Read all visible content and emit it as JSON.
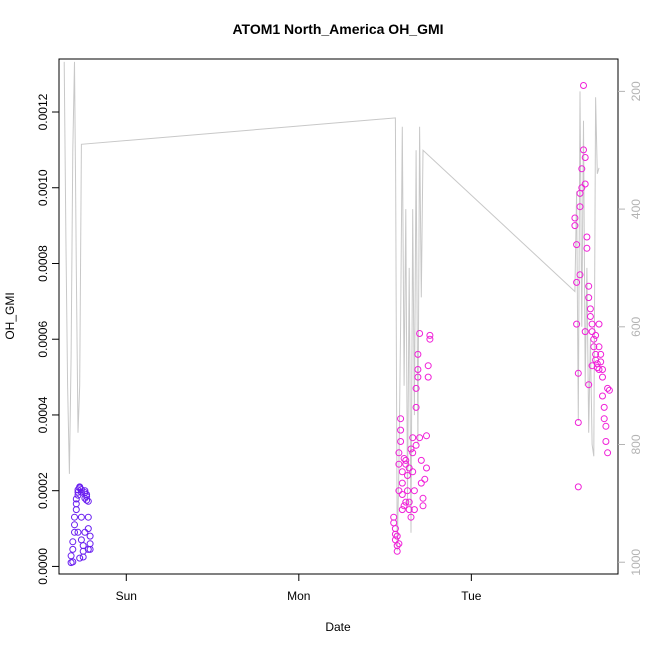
{
  "chart_data": {
    "type": "scatter",
    "title": "ATOM1 North_America OH_GMI",
    "xlabel": "Date",
    "ylabel": "OH_GMI",
    "x_ticks": [
      "Sun",
      "Mon",
      "Tue"
    ],
    "y_ticks": [
      "0.0000",
      "0.0002",
      "0.0004",
      "0.0006",
      "0.0008",
      "0.0010",
      "0.0012"
    ],
    "y_tick_values": [
      0,
      0.0002,
      0.0004,
      0.0006,
      0.0008,
      0.001,
      0.0012
    ],
    "ylim": [
      -2e-05,
      0.00134
    ],
    "xlim_days": [
      -0.39,
      2.85
    ],
    "right_axis_ticks": [
      "200",
      "400",
      "600",
      "800",
      "1000"
    ],
    "right_axis_values": [
      200,
      400,
      600,
      800,
      1000
    ],
    "right_axis_range": [
      1020,
      145
    ],
    "grid": false,
    "colors": {
      "early": "#6a1ff0",
      "late": "#f020d8",
      "pressure_line": "#c8c8c8",
      "right_axis": "#b3b3b3"
    },
    "series": [
      {
        "values": [
          [
            -0.32,
            1e-05
          ],
          [
            -0.32,
            2.8e-05
          ],
          [
            -0.31,
            4.5e-05
          ],
          [
            -0.31,
            6.5e-05
          ],
          [
            -0.3,
            9e-05
          ],
          [
            -0.3,
            0.00011
          ],
          [
            -0.3,
            0.00013
          ],
          [
            -0.29,
            0.00015
          ],
          [
            -0.29,
            0.000165
          ],
          [
            -0.29,
            0.000178
          ],
          [
            -0.28,
            0.000188
          ],
          [
            -0.28,
            0.000196
          ],
          [
            -0.28,
            0.000202
          ],
          [
            -0.27,
            0.000207
          ],
          [
            -0.27,
            0.00021
          ],
          [
            -0.27,
            0.000208
          ],
          [
            -0.26,
            0.000203
          ],
          [
            -0.26,
            0.000196
          ],
          [
            -0.26,
            7e-05
          ],
          [
            -0.25,
            5.5e-05
          ],
          [
            -0.25,
            4e-05
          ],
          [
            -0.25,
            2.5e-05
          ],
          [
            -0.24,
            0.00018
          ],
          [
            -0.24,
            0.000195
          ],
          [
            -0.24,
            0.0002
          ],
          [
            -0.23,
            0.00019
          ],
          [
            -0.23,
            0.000185
          ],
          [
            -0.23,
            0.000175
          ],
          [
            -0.22,
            0.000172
          ],
          [
            -0.22,
            0.00013
          ],
          [
            -0.22,
            0.0001
          ],
          [
            -0.21,
            8e-05
          ],
          [
            -0.21,
            6e-05
          ],
          [
            -0.21,
            4.5e-05
          ],
          [
            -0.26,
            0.00013
          ],
          [
            -0.28,
            9e-05
          ],
          [
            -0.31,
            1.2e-05
          ],
          [
            -0.27,
            2.2e-05
          ],
          [
            -0.24,
            9e-05
          ],
          [
            -0.22,
            4.5e-05
          ]
        ]
      },
      {
        "values": [
          [
            1.55,
            0.00013
          ],
          [
            1.55,
            0.000115
          ],
          [
            1.56,
            0.0001
          ],
          [
            1.56,
            8.5e-05
          ],
          [
            1.56,
            7e-05
          ],
          [
            1.57,
            5.5e-05
          ],
          [
            1.57,
            4e-05
          ],
          [
            1.57,
            8e-05
          ],
          [
            1.58,
            6e-05
          ],
          [
            1.58,
            0.00027
          ],
          [
            1.58,
            0.0003
          ],
          [
            1.59,
            0.00033
          ],
          [
            1.59,
            0.00036
          ],
          [
            1.59,
            0.00039
          ],
          [
            1.6,
            0.00025
          ],
          [
            1.6,
            0.00022
          ],
          [
            1.6,
            0.00019
          ],
          [
            1.61,
            0.00016
          ],
          [
            1.61,
            0.000285
          ],
          [
            1.62,
            0.00028
          ],
          [
            1.62,
            0.00027
          ],
          [
            1.63,
            0.00024
          ],
          [
            1.63,
            0.0002
          ],
          [
            1.64,
            0.00017
          ],
          [
            1.64,
            0.00015
          ],
          [
            1.65,
            0.00013
          ],
          [
            1.65,
            0.00031
          ],
          [
            1.66,
            0.00034
          ],
          [
            1.66,
            0.00025
          ],
          [
            1.67,
            0.0002
          ],
          [
            1.67,
            0.00015
          ],
          [
            1.68,
            0.00042
          ],
          [
            1.68,
            0.00047
          ],
          [
            1.69,
            0.0005
          ],
          [
            1.69,
            0.00052
          ],
          [
            1.69,
            0.00056
          ],
          [
            1.7,
            0.000615
          ],
          [
            1.7,
            0.00034
          ],
          [
            1.71,
            0.00028
          ],
          [
            1.71,
            0.00022
          ],
          [
            1.72,
            0.00018
          ],
          [
            1.72,
            0.00016
          ],
          [
            1.73,
            0.00023
          ],
          [
            1.74,
            0.00026
          ],
          [
            1.74,
            0.000345
          ],
          [
            1.75,
            0.0005
          ],
          [
            1.75,
            0.00053
          ],
          [
            1.76,
            0.0006
          ],
          [
            1.76,
            0.00061
          ],
          [
            1.58,
            0.0002
          ],
          [
            1.6,
            0.00015
          ],
          [
            1.62,
            0.00017
          ],
          [
            1.64,
            0.00026
          ],
          [
            1.66,
            0.0003
          ],
          [
            1.68,
            0.00032
          ]
        ]
      },
      {
        "values": [
          [
            2.6,
            0.00092
          ],
          [
            2.6,
            0.0009
          ],
          [
            2.61,
            0.00085
          ],
          [
            2.61,
            0.00075
          ],
          [
            2.61,
            0.00064
          ],
          [
            2.62,
            0.00051
          ],
          [
            2.62,
            0.00021
          ],
          [
            2.62,
            0.00038
          ],
          [
            2.63,
            0.00095
          ],
          [
            2.63,
            0.000985
          ],
          [
            2.64,
            0.001
          ],
          [
            2.64,
            0.00105
          ],
          [
            2.65,
            0.0011
          ],
          [
            2.65,
            0.00127
          ],
          [
            2.66,
            0.00108
          ],
          [
            2.66,
            0.00101
          ],
          [
            2.67,
            0.00087
          ],
          [
            2.67,
            0.00084
          ],
          [
            2.68,
            0.00074
          ],
          [
            2.68,
            0.00071
          ],
          [
            2.69,
            0.00068
          ],
          [
            2.69,
            0.00066
          ],
          [
            2.7,
            0.00064
          ],
          [
            2.7,
            0.00062
          ],
          [
            2.71,
            0.0006
          ],
          [
            2.71,
            0.00058
          ],
          [
            2.72,
            0.00056
          ],
          [
            2.72,
            0.000545
          ],
          [
            2.73,
            0.000535
          ],
          [
            2.73,
            0.000525
          ],
          [
            2.74,
            0.00052
          ],
          [
            2.74,
            0.00058
          ],
          [
            2.75,
            0.00056
          ],
          [
            2.75,
            0.00054
          ],
          [
            2.76,
            0.0005
          ],
          [
            2.76,
            0.00045
          ],
          [
            2.77,
            0.00042
          ],
          [
            2.77,
            0.00039
          ],
          [
            2.78,
            0.00037
          ],
          [
            2.78,
            0.00033
          ],
          [
            2.79,
            0.0003
          ],
          [
            2.79,
            0.00047
          ],
          [
            2.8,
            0.000465
          ],
          [
            2.63,
            0.00077
          ],
          [
            2.66,
            0.00062
          ],
          [
            2.68,
            0.00048
          ],
          [
            2.7,
            0.00053
          ],
          [
            2.72,
            0.00061
          ],
          [
            2.74,
            0.00064
          ],
          [
            2.76,
            0.00052
          ]
        ]
      }
    ],
    "pressure_line": [
      [
        -0.36,
        150
      ],
      [
        -0.35,
        450
      ],
      [
        -0.34,
        700
      ],
      [
        -0.33,
        850
      ],
      [
        -0.32,
        650
      ],
      [
        -0.31,
        300
      ],
      [
        -0.3,
        150
      ],
      [
        -0.29,
        500
      ],
      [
        -0.28,
        780
      ],
      [
        -0.27,
        700
      ],
      [
        -0.26,
        290
      ],
      [
        1.56,
        245
      ],
      [
        1.57,
        980
      ],
      [
        1.58,
        840
      ],
      [
        1.59,
        600
      ],
      [
        1.6,
        260
      ],
      [
        1.61,
        700
      ],
      [
        1.62,
        400
      ],
      [
        1.63,
        900
      ],
      [
        1.64,
        500
      ],
      [
        1.65,
        950
      ],
      [
        1.66,
        400
      ],
      [
        1.67,
        750
      ],
      [
        1.68,
        300
      ],
      [
        1.69,
        800
      ],
      [
        1.7,
        260
      ],
      [
        1.71,
        550
      ],
      [
        1.72,
        300
      ],
      [
        2.6,
        540
      ],
      [
        2.61,
        370
      ],
      [
        2.62,
        760
      ],
      [
        2.63,
        200
      ],
      [
        2.64,
        600
      ],
      [
        2.65,
        250
      ],
      [
        2.66,
        700
      ],
      [
        2.67,
        500
      ],
      [
        2.68,
        780
      ],
      [
        2.69,
        620
      ],
      [
        2.7,
        800
      ],
      [
        2.71,
        820
      ],
      [
        2.72,
        210
      ],
      [
        2.73,
        340
      ],
      [
        2.74,
        330
      ]
    ]
  }
}
